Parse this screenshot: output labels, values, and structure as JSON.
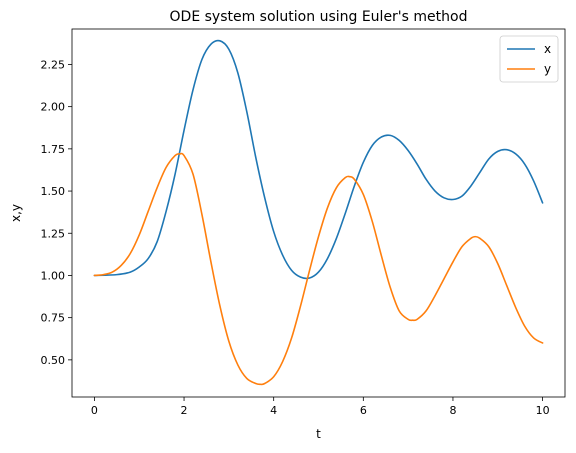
{
  "chart_data": {
    "type": "line",
    "title": "ODE system solution using Euler's method",
    "xlabel": "t",
    "ylabel": "x,y",
    "xlim": [
      -0.5,
      10.5
    ],
    "ylim": [
      0.28,
      2.46
    ],
    "xticks": [
      0,
      2,
      4,
      6,
      8,
      10
    ],
    "xtick_labels": [
      "0",
      "2",
      "4",
      "6",
      "8",
      "10"
    ],
    "yticks": [
      0.5,
      0.75,
      1.0,
      1.25,
      1.5,
      1.75,
      2.0,
      2.25
    ],
    "ytick_labels": [
      "0.50",
      "0.75",
      "1.00",
      "1.25",
      "1.50",
      "1.75",
      "2.00",
      "2.25"
    ],
    "grid": false,
    "legend_position": "top-right",
    "series": [
      {
        "name": "x",
        "color": "#1f77b4",
        "points": [
          [
            0.0,
            1.0
          ],
          [
            0.5,
            1.005
          ],
          [
            0.8,
            1.02
          ],
          [
            1.0,
            1.05
          ],
          [
            1.2,
            1.1
          ],
          [
            1.4,
            1.2
          ],
          [
            1.6,
            1.38
          ],
          [
            1.8,
            1.6
          ],
          [
            2.0,
            1.86
          ],
          [
            2.2,
            2.1
          ],
          [
            2.4,
            2.28
          ],
          [
            2.6,
            2.37
          ],
          [
            2.8,
            2.39
          ],
          [
            3.0,
            2.34
          ],
          [
            3.2,
            2.2
          ],
          [
            3.4,
            1.97
          ],
          [
            3.6,
            1.7
          ],
          [
            3.8,
            1.46
          ],
          [
            4.0,
            1.26
          ],
          [
            4.2,
            1.12
          ],
          [
            4.4,
            1.03
          ],
          [
            4.6,
            0.99
          ],
          [
            4.8,
            0.985
          ],
          [
            5.0,
            1.02
          ],
          [
            5.2,
            1.1
          ],
          [
            5.4,
            1.22
          ],
          [
            5.6,
            1.37
          ],
          [
            5.8,
            1.53
          ],
          [
            6.0,
            1.67
          ],
          [
            6.2,
            1.77
          ],
          [
            6.4,
            1.82
          ],
          [
            6.6,
            1.83
          ],
          [
            6.8,
            1.8
          ],
          [
            7.0,
            1.74
          ],
          [
            7.2,
            1.66
          ],
          [
            7.4,
            1.57
          ],
          [
            7.6,
            1.5
          ],
          [
            7.8,
            1.46
          ],
          [
            8.0,
            1.45
          ],
          [
            8.2,
            1.47
          ],
          [
            8.4,
            1.53
          ],
          [
            8.6,
            1.61
          ],
          [
            8.8,
            1.69
          ],
          [
            9.0,
            1.735
          ],
          [
            9.2,
            1.745
          ],
          [
            9.4,
            1.72
          ],
          [
            9.6,
            1.66
          ],
          [
            9.8,
            1.56
          ],
          [
            10.0,
            1.43
          ]
        ]
      },
      {
        "name": "y",
        "color": "#ff7f0e",
        "points": [
          [
            0.0,
            1.0
          ],
          [
            0.2,
            1.005
          ],
          [
            0.4,
            1.02
          ],
          [
            0.6,
            1.06
          ],
          [
            0.8,
            1.13
          ],
          [
            1.0,
            1.24
          ],
          [
            1.2,
            1.38
          ],
          [
            1.4,
            1.52
          ],
          [
            1.6,
            1.64
          ],
          [
            1.8,
            1.71
          ],
          [
            1.9,
            1.72
          ],
          [
            2.0,
            1.71
          ],
          [
            2.2,
            1.6
          ],
          [
            2.4,
            1.36
          ],
          [
            2.6,
            1.08
          ],
          [
            2.8,
            0.82
          ],
          [
            3.0,
            0.61
          ],
          [
            3.2,
            0.47
          ],
          [
            3.4,
            0.39
          ],
          [
            3.6,
            0.36
          ],
          [
            3.7,
            0.355
          ],
          [
            3.8,
            0.36
          ],
          [
            4.0,
            0.4
          ],
          [
            4.2,
            0.49
          ],
          [
            4.4,
            0.63
          ],
          [
            4.6,
            0.82
          ],
          [
            4.8,
            1.03
          ],
          [
            5.0,
            1.23
          ],
          [
            5.2,
            1.4
          ],
          [
            5.4,
            1.52
          ],
          [
            5.6,
            1.58
          ],
          [
            5.7,
            1.585
          ],
          [
            5.8,
            1.57
          ],
          [
            6.0,
            1.48
          ],
          [
            6.2,
            1.32
          ],
          [
            6.4,
            1.12
          ],
          [
            6.6,
            0.93
          ],
          [
            6.8,
            0.79
          ],
          [
            7.0,
            0.74
          ],
          [
            7.1,
            0.735
          ],
          [
            7.2,
            0.74
          ],
          [
            7.4,
            0.79
          ],
          [
            7.6,
            0.88
          ],
          [
            7.8,
            0.98
          ],
          [
            8.0,
            1.08
          ],
          [
            8.2,
            1.17
          ],
          [
            8.4,
            1.22
          ],
          [
            8.5,
            1.23
          ],
          [
            8.6,
            1.22
          ],
          [
            8.8,
            1.17
          ],
          [
            9.0,
            1.07
          ],
          [
            9.2,
            0.94
          ],
          [
            9.4,
            0.81
          ],
          [
            9.6,
            0.7
          ],
          [
            9.8,
            0.63
          ],
          [
            10.0,
            0.6
          ]
        ]
      }
    ]
  }
}
